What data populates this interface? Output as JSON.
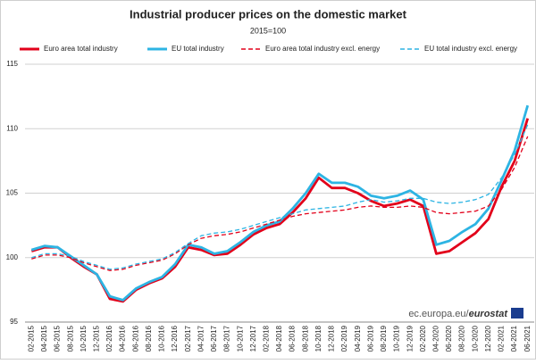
{
  "chart_data": {
    "type": "line",
    "title": "Industrial producer prices on the domestic market",
    "subtitle": "2015=100",
    "source_site": "ec.europa.eu/",
    "source_brand": "eurostat",
    "categories": [
      "02-2015",
      "04-2015",
      "06-2015",
      "08-2015",
      "10-2015",
      "12-2015",
      "02-2016",
      "04-2016",
      "06-2016",
      "08-2016",
      "10-2016",
      "12-2016",
      "02-2017",
      "04-2017",
      "06-2017",
      "08-2017",
      "10-2017",
      "12-2017",
      "02-2018",
      "04-2018",
      "06-2018",
      "08-2018",
      "10-2018",
      "12-2018",
      "02-2019",
      "04-2019",
      "06-2019",
      "08-2019",
      "10-2019",
      "12-2019",
      "02-2020",
      "04-2020",
      "06-2020",
      "08-2020",
      "10-2020",
      "12-2020",
      "02-2021",
      "04-2021",
      "06-2021"
    ],
    "series": [
      {
        "name": "Euro area total industry",
        "color": "#e2001a",
        "line_style": "solid",
        "values": [
          100.5,
          100.8,
          100.8,
          100.0,
          99.3,
          98.7,
          96.8,
          96.6,
          97.5,
          98.0,
          98.4,
          99.3,
          100.8,
          100.6,
          100.2,
          100.3,
          101.0,
          101.8,
          102.3,
          102.6,
          103.5,
          104.6,
          106.2,
          105.4,
          105.4,
          105.0,
          104.4,
          104.0,
          104.2,
          104.5,
          104.0,
          100.3,
          100.5,
          101.2,
          101.9,
          103.0,
          105.5,
          107.5,
          110.8
        ]
      },
      {
        "name": "EU total industry",
        "color": "#2db4e3",
        "line_style": "solid",
        "values": [
          100.6,
          100.9,
          100.8,
          100.1,
          99.4,
          98.7,
          97.0,
          96.7,
          97.6,
          98.1,
          98.5,
          99.5,
          101.0,
          100.8,
          100.3,
          100.5,
          101.2,
          102.0,
          102.5,
          102.8,
          103.8,
          105.0,
          106.5,
          105.8,
          105.8,
          105.5,
          104.8,
          104.6,
          104.8,
          105.2,
          104.5,
          101.0,
          101.3,
          102.0,
          102.6,
          103.8,
          106.0,
          108.3,
          111.8
        ]
      },
      {
        "name": "Euro area total industry excl. energy",
        "color": "#e2001a",
        "line_style": "dashed",
        "values": [
          99.9,
          100.2,
          100.2,
          100.0,
          99.6,
          99.3,
          99.0,
          99.1,
          99.4,
          99.6,
          99.8,
          100.3,
          101.0,
          101.5,
          101.7,
          101.8,
          102.0,
          102.3,
          102.6,
          102.9,
          103.2,
          103.4,
          103.5,
          103.6,
          103.7,
          103.9,
          104.0,
          103.9,
          103.9,
          104.0,
          103.9,
          103.5,
          103.4,
          103.5,
          103.6,
          104.0,
          105.3,
          107.0,
          109.4
        ]
      },
      {
        "name": "EU total industry excl. energy",
        "color": "#2db4e3",
        "line_style": "dashed",
        "values": [
          100.0,
          100.3,
          100.3,
          100.1,
          99.7,
          99.4,
          99.1,
          99.2,
          99.5,
          99.7,
          99.9,
          100.4,
          101.1,
          101.7,
          101.9,
          102.0,
          102.2,
          102.5,
          102.8,
          103.1,
          103.4,
          103.7,
          103.8,
          103.9,
          104.0,
          104.3,
          104.5,
          104.3,
          104.4,
          104.6,
          104.6,
          104.3,
          104.2,
          104.3,
          104.5,
          104.9,
          106.2,
          108.0,
          110.3
        ]
      }
    ],
    "ylim": [
      95,
      115
    ],
    "yticks": [
      95,
      100,
      105,
      110,
      115
    ],
    "grid": true
  }
}
